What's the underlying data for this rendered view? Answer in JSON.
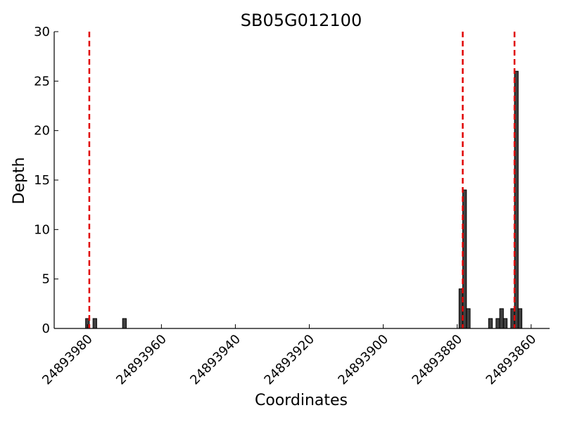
{
  "chart_data": {
    "type": "bar",
    "title": "SB05G012100",
    "xlabel": "Coordinates",
    "ylabel": "Depth",
    "xlim": [
      24893989,
      24893855
    ],
    "ylim": [
      0,
      30
    ],
    "x_reversed": true,
    "xticks": [
      24893980,
      24893960,
      24893940,
      24893920,
      24893900,
      24893880,
      24893860
    ],
    "xtick_labels": [
      "24893980",
      "24893960",
      "24893940",
      "24893920",
      "24893900",
      "24893880",
      "24893860"
    ],
    "yticks": [
      0,
      5,
      10,
      15,
      20,
      25,
      30
    ],
    "ytick_labels": [
      "0",
      "5",
      "10",
      "15",
      "20",
      "25",
      "30"
    ],
    "bar_color": "#404040",
    "marker_color": "#e00000",
    "bars": [
      {
        "x": 24893980,
        "y": 1
      },
      {
        "x": 24893978,
        "y": 1
      },
      {
        "x": 24893970,
        "y": 1
      },
      {
        "x": 24893879,
        "y": 4
      },
      {
        "x": 24893878,
        "y": 14
      },
      {
        "x": 24893877,
        "y": 2
      },
      {
        "x": 24893871,
        "y": 1
      },
      {
        "x": 24893869,
        "y": 1
      },
      {
        "x": 24893868,
        "y": 2
      },
      {
        "x": 24893867,
        "y": 1
      },
      {
        "x": 24893865,
        "y": 2
      },
      {
        "x": 24893864,
        "y": 26
      },
      {
        "x": 24893863,
        "y": 2
      }
    ],
    "vlines": [
      24893979.5,
      24893878.5,
      24893864.5
    ]
  }
}
